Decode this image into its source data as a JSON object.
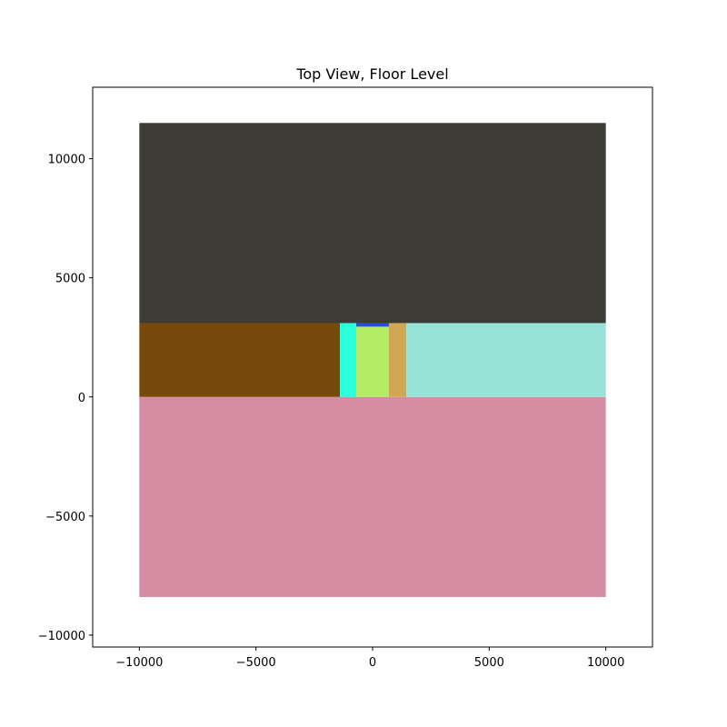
{
  "chart_data": {
    "type": "heatmap",
    "title": "Top View, Floor Level",
    "xlabel": "",
    "ylabel": "",
    "xlim": [
      -12000,
      12000
    ],
    "ylim": [
      -10500,
      13000
    ],
    "xticks": [
      -10000,
      -5000,
      0,
      5000,
      10000
    ],
    "xtick_labels": [
      "−10000",
      "−5000",
      "0",
      "5000",
      "10000"
    ],
    "yticks": [
      -10000,
      -5000,
      0,
      5000,
      10000
    ],
    "ytick_labels": [
      "−10000",
      "−5000",
      "0",
      "5000",
      "10000"
    ],
    "grid": false,
    "regions": [
      {
        "x0": -10000,
        "x1": 10000,
        "y0": 3100,
        "y1": 11500,
        "color": "#3c3b36"
      },
      {
        "x0": -10000,
        "x1": 10000,
        "y0": -8400,
        "y1": 0,
        "color": "#d68da3"
      },
      {
        "x0": -10000,
        "x1": -1400,
        "y0": 0,
        "y1": 3100,
        "color": "#774a0b"
      },
      {
        "x0": -1400,
        "x1": -700,
        "y0": 0,
        "y1": 3100,
        "color": "#2cffdc"
      },
      {
        "x0": -700,
        "x1": 700,
        "y0": 0,
        "y1": 2950,
        "color": "#b3ed66"
      },
      {
        "x0": -700,
        "x1": 700,
        "y0": 2950,
        "y1": 3100,
        "color": "#2a4fd6"
      },
      {
        "x0": 700,
        "x1": 1450,
        "y0": 0,
        "y1": 3100,
        "color": "#d2a753"
      },
      {
        "x0": 1450,
        "x1": 10000,
        "y0": 0,
        "y1": 3100,
        "color": "#98e3d8"
      }
    ]
  }
}
